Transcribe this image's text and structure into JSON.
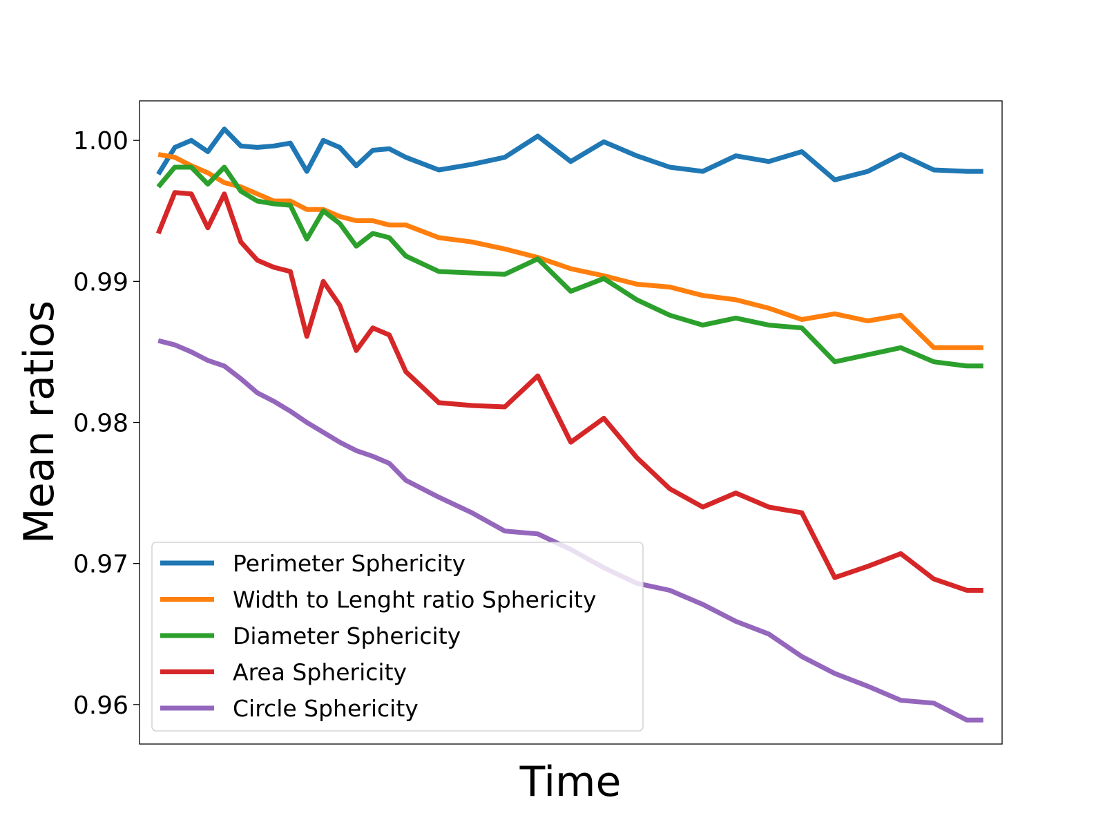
{
  "chart_data": {
    "type": "line",
    "title": "",
    "xlabel": "Time",
    "ylabel": "Mean ratios",
    "ylim": [
      0.9572,
      1.0028
    ],
    "xlim": [
      -1.14,
      51.14
    ],
    "yticks": [
      0.96,
      0.97,
      0.98,
      0.99,
      1.0
    ],
    "ytick_labels": [
      "0.96",
      "0.97",
      "0.98",
      "0.99",
      "1.00"
    ],
    "xticks_visible": false,
    "grid": false,
    "legend_position": "lower-left",
    "x": [
      0,
      1,
      2,
      3,
      4,
      5,
      6,
      7,
      8,
      9,
      10,
      11,
      12,
      13,
      14,
      15,
      17,
      19,
      21,
      23,
      25,
      27,
      29,
      31,
      33,
      35,
      37,
      39,
      41,
      43,
      45,
      47,
      49,
      50
    ],
    "series": [
      {
        "name": "Perimeter Sphericity",
        "color": "#1f77b4",
        "values": [
          0.9976,
          0.9995,
          1.0,
          0.9992,
          1.0008,
          0.9996,
          0.9995,
          0.9996,
          0.9998,
          0.9978,
          1.0,
          0.9995,
          0.9982,
          0.9993,
          0.9994,
          0.9988,
          0.9979,
          0.9983,
          0.9988,
          1.0003,
          0.9985,
          0.9999,
          0.9989,
          0.9981,
          0.9978,
          0.9989,
          0.9985,
          0.9992,
          0.9972,
          0.9978,
          0.999,
          0.9979,
          0.9978,
          0.9978
        ]
      },
      {
        "name": "Width to Lenght ratio Sphericity",
        "color": "#ff7f0e",
        "values": [
          0.999,
          0.9988,
          0.9982,
          0.9977,
          0.997,
          0.9967,
          0.9962,
          0.9957,
          0.9957,
          0.9951,
          0.9951,
          0.9946,
          0.9943,
          0.9943,
          0.994,
          0.994,
          0.9931,
          0.9928,
          0.9923,
          0.9917,
          0.9909,
          0.9904,
          0.9898,
          0.9896,
          0.989,
          0.9887,
          0.9881,
          0.9873,
          0.9877,
          0.9872,
          0.9876,
          0.9853,
          0.9853,
          0.9853
        ]
      },
      {
        "name": "Diameter Sphericity",
        "color": "#2ca02c",
        "values": [
          0.9967,
          0.9981,
          0.9981,
          0.9969,
          0.9981,
          0.9964,
          0.9957,
          0.9955,
          0.9954,
          0.993,
          0.995,
          0.9941,
          0.9925,
          0.9934,
          0.9931,
          0.9918,
          0.9907,
          0.9906,
          0.9905,
          0.9916,
          0.9893,
          0.9902,
          0.9887,
          0.9876,
          0.9869,
          0.9874,
          0.9869,
          0.9867,
          0.9843,
          0.9848,
          0.9853,
          0.9843,
          0.984,
          0.984
        ]
      },
      {
        "name": "Area Sphericity",
        "color": "#d62728",
        "values": [
          0.9934,
          0.9963,
          0.9962,
          0.9938,
          0.9962,
          0.9928,
          0.9915,
          0.991,
          0.9907,
          0.9861,
          0.99,
          0.9883,
          0.9851,
          0.9867,
          0.9862,
          0.9836,
          0.9814,
          0.9812,
          0.9811,
          0.9833,
          0.9786,
          0.9803,
          0.9775,
          0.9753,
          0.974,
          0.975,
          0.974,
          0.9736,
          0.969,
          0.9698,
          0.9707,
          0.9689,
          0.9681,
          0.9681
        ]
      },
      {
        "name": "Circle Sphericity",
        "color": "#9467bd",
        "values": [
          0.9858,
          0.9855,
          0.985,
          0.9844,
          0.984,
          0.9831,
          0.9821,
          0.9815,
          0.9808,
          0.98,
          0.9793,
          0.9786,
          0.978,
          0.9776,
          0.9771,
          0.9759,
          0.9747,
          0.9736,
          0.9723,
          0.9721,
          0.971,
          0.9697,
          0.9686,
          0.9681,
          0.9671,
          0.9659,
          0.965,
          0.9634,
          0.9622,
          0.9613,
          0.9603,
          0.9601,
          0.9589,
          0.9589
        ]
      }
    ]
  }
}
